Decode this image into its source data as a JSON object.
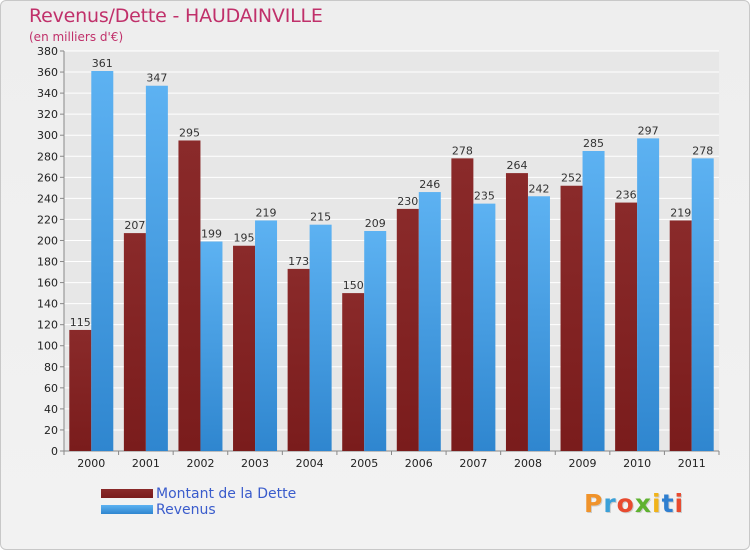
{
  "title": "Revenus/Dette - HAUDAINVILLE",
  "subtitle": "(en milliers d'€)",
  "logo": {
    "text": "Proxiti",
    "colors": [
      "#f0932b",
      "#3aa0d8",
      "#e84a2f",
      "#5fb230",
      "#f0b31a",
      "#2f7fd0",
      "#e84a2f"
    ]
  },
  "colors": {
    "dette": "#7a1c1c",
    "revenus": "#4aa3e8"
  },
  "chart_data": {
    "type": "bar",
    "title": "Revenus/Dette - HAUDAINVILLE",
    "ylabel": "(en milliers d'€)",
    "xlabel": "",
    "ylim": [
      0,
      380
    ],
    "ytick_step": 20,
    "grid": true,
    "categories": [
      "2000",
      "2001",
      "2002",
      "2003",
      "2004",
      "2005",
      "2006",
      "2007",
      "2008",
      "2009",
      "2010",
      "2011"
    ],
    "series": [
      {
        "name": "Montant de la Dette",
        "values": [
          115,
          207,
          295,
          195,
          173,
          150,
          230,
          278,
          264,
          252,
          236,
          219
        ]
      },
      {
        "name": "Revenus",
        "values": [
          361,
          347,
          199,
          219,
          215,
          209,
          246,
          235,
          242,
          285,
          297,
          278
        ]
      }
    ],
    "legend_position": "bottom-left"
  }
}
